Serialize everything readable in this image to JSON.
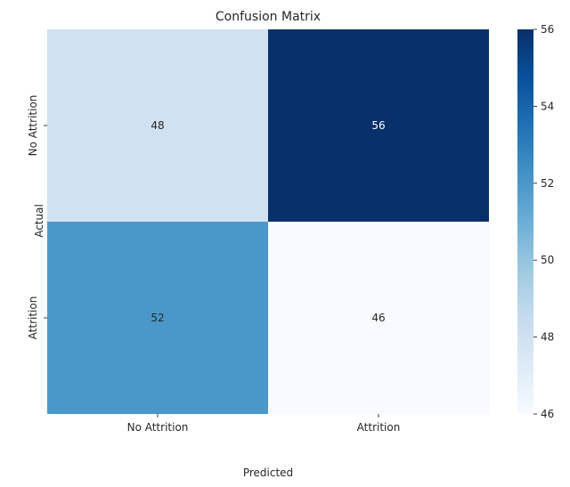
{
  "chart_data": {
    "type": "heatmap",
    "title": "Confusion Matrix",
    "xlabel": "Predicted",
    "ylabel": "Actual",
    "x_categories": [
      "No Attrition",
      "Attrition"
    ],
    "y_categories": [
      "No Attrition",
      "Attrition"
    ],
    "values": [
      [
        48,
        56
      ],
      [
        52,
        46
      ]
    ],
    "colormap": "Blues",
    "colorbar": {
      "range": [
        46,
        56
      ],
      "ticks": [
        46,
        48,
        50,
        52,
        54,
        56
      ]
    },
    "annotations": true
  }
}
